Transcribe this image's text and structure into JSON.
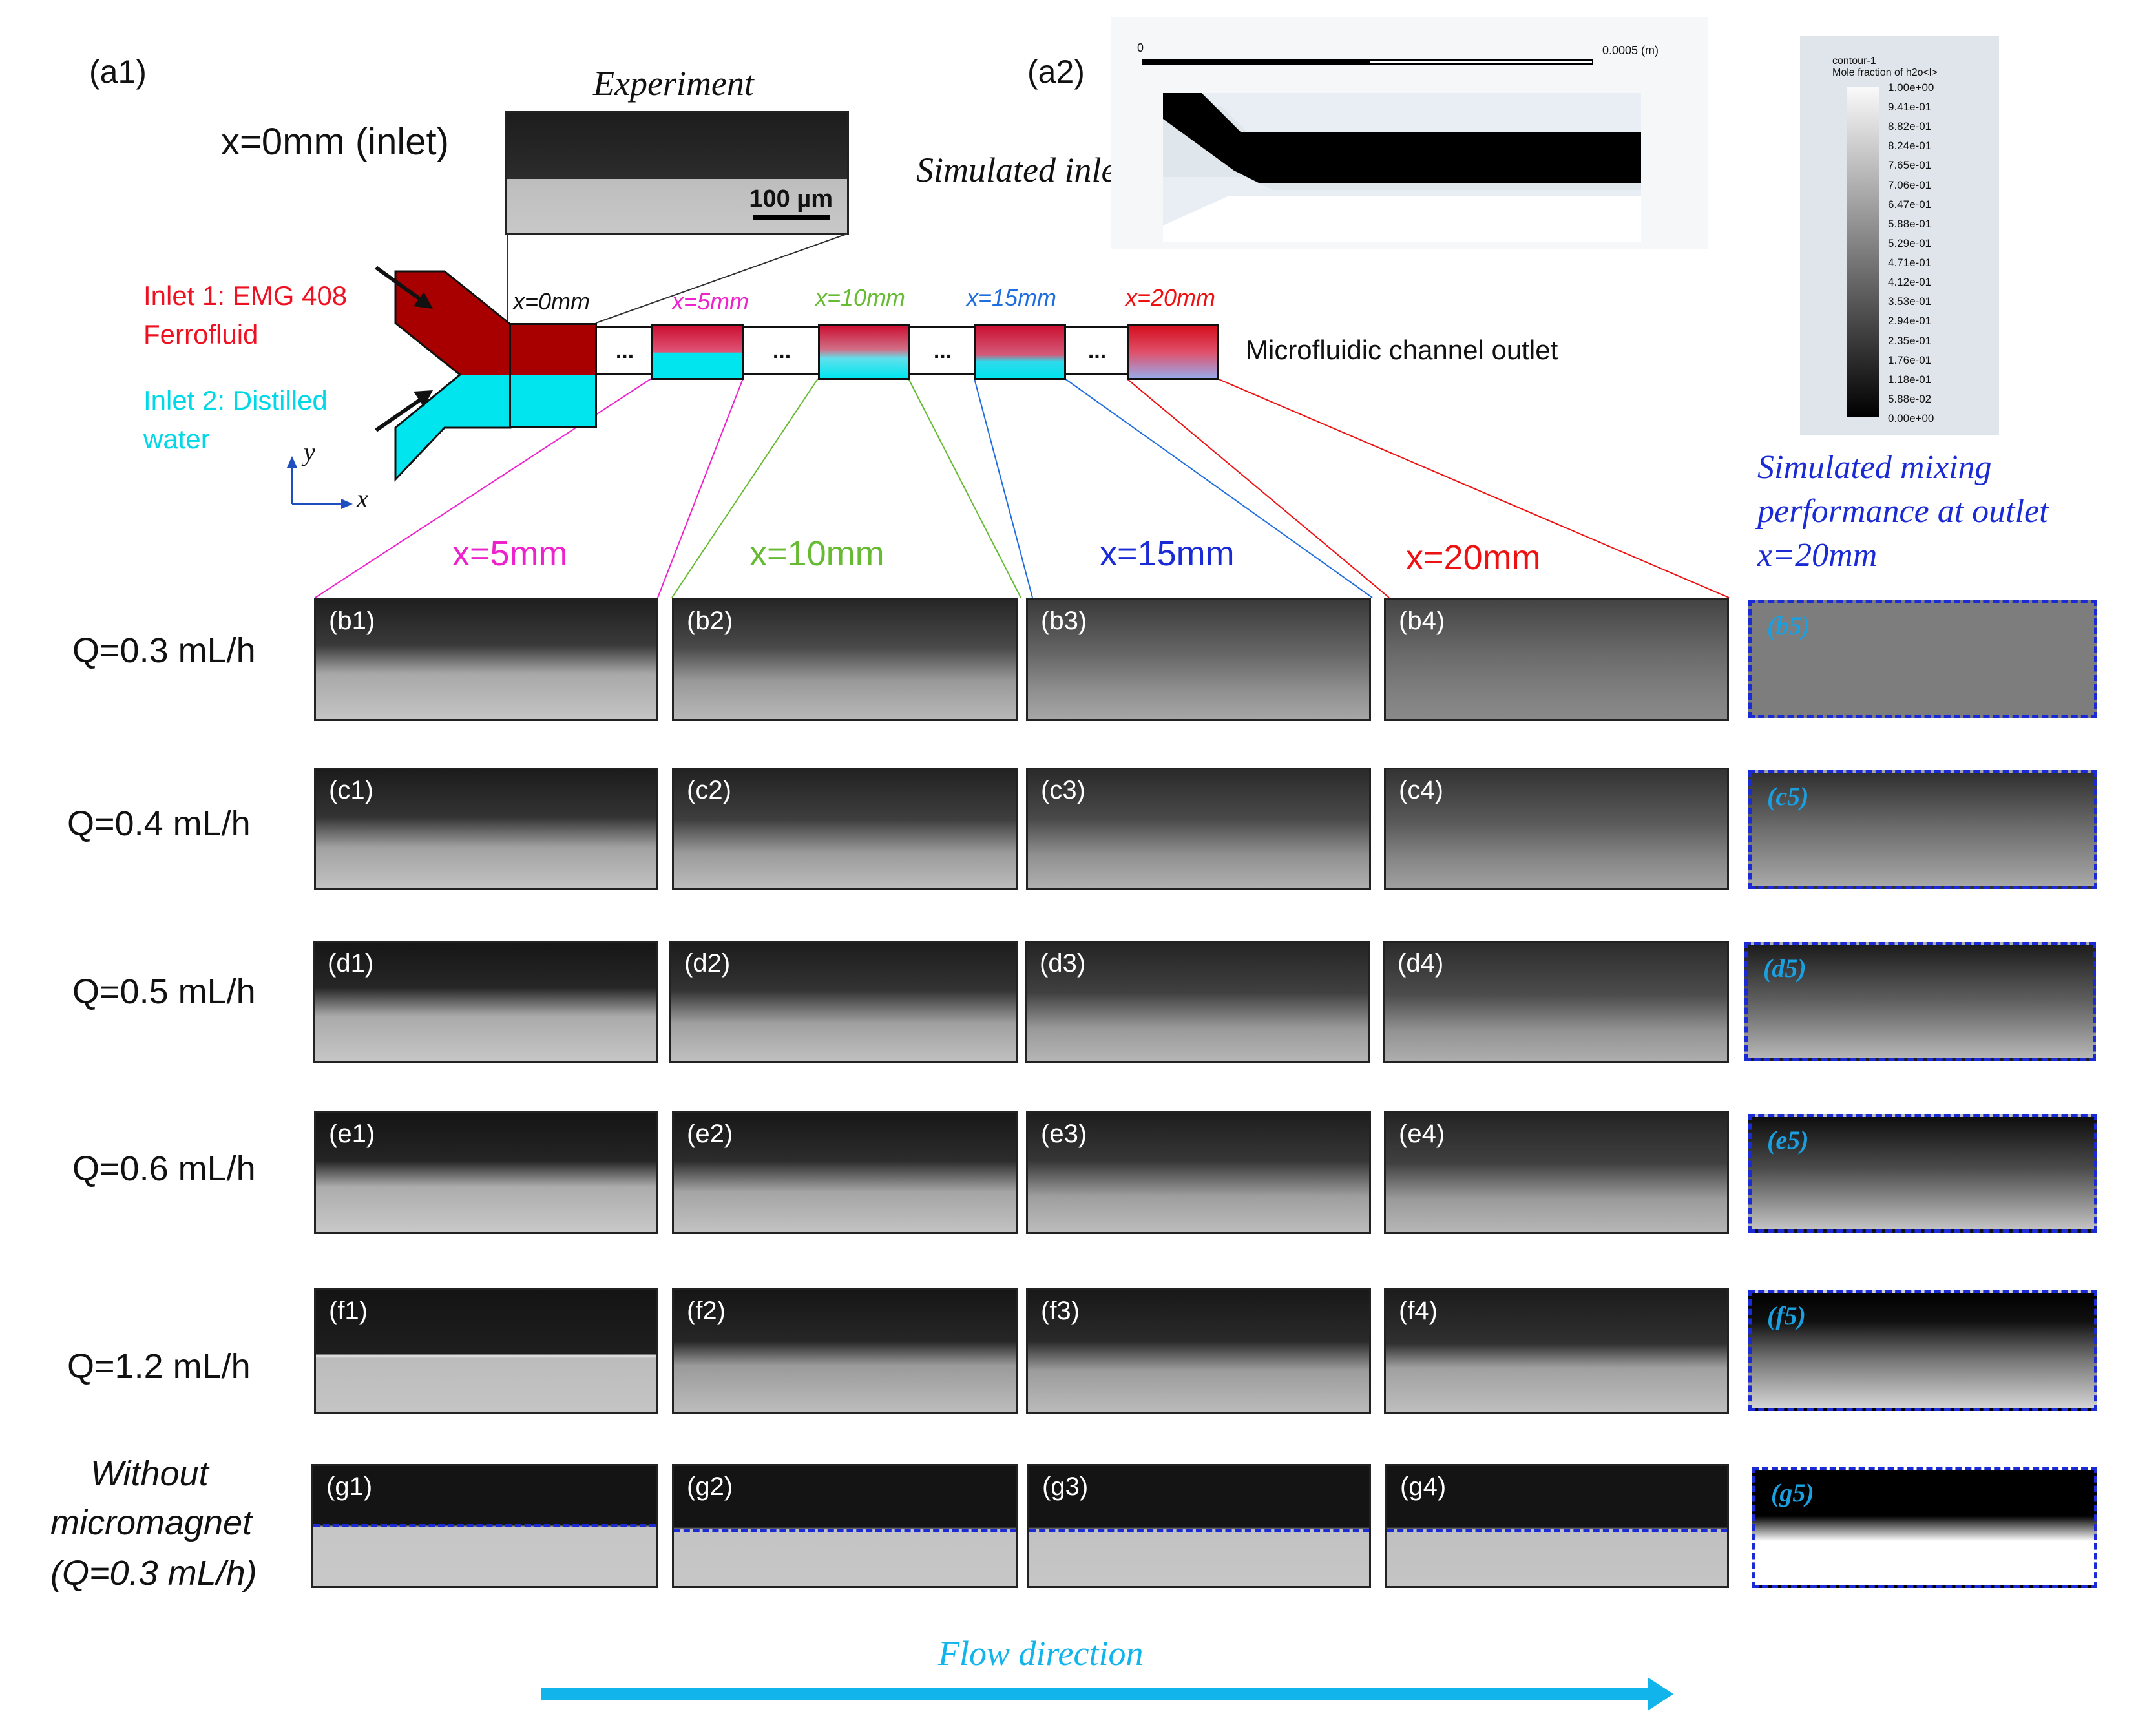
{
  "panel_a1": {
    "tag": "(a1)",
    "experiment_title": "Experiment",
    "inlet_position": "x=0mm (inlet)",
    "scale_bar": "100 µm",
    "inlet1": "Inlet 1: EMG 408 Ferrofluid",
    "inlet2": "Inlet 2: Distilled water",
    "axis_y": "y",
    "axis_x": "x",
    "channel_markers": [
      "x=0mm",
      "x=5mm",
      "x=10mm",
      "x=15mm",
      "x=20mm"
    ],
    "ellipsis": "...",
    "outlet": "Microfluidic channel outlet"
  },
  "panel_a2": {
    "tag": "(a2)",
    "caption": "Simulated inlet",
    "scale_start": "0",
    "scale_end": "0.0005 (m)"
  },
  "colorbar": {
    "title_line1": "contour-1",
    "title_line2": "Mole fraction of h2o<l>",
    "ticks": [
      "1.00e+00",
      "9.41e-01",
      "8.82e-01",
      "8.24e-01",
      "7.65e-01",
      "7.06e-01",
      "6.47e-01",
      "5.88e-01",
      "5.29e-01",
      "4.71e-01",
      "4.12e-01",
      "3.53e-01",
      "2.94e-01",
      "2.35e-01",
      "1.76e-01",
      "1.18e-01",
      "5.88e-02",
      "0.00e+00"
    ]
  },
  "sim_caption": "Simulated mixing performance at outlet x=20mm",
  "column_headers": [
    "x=5mm",
    "x=10mm",
    "x=15mm",
    "x=20mm"
  ],
  "colors": {
    "ferrofluid": "#a80000",
    "water": "#00e5ee",
    "x5": "#ee22cc",
    "x10": "#66bb33",
    "x15": "#1f6ee0",
    "x20": "#ee1111",
    "sim_border": "#1a2bd6",
    "sim_label": "#1aa0e0",
    "flow_arrow": "#12b4ec"
  },
  "rows": [
    {
      "label": "Q=0.3 mL/h",
      "panels": [
        "(b1)",
        "(b2)",
        "(b3)",
        "(b4)"
      ],
      "sim": "(b5)"
    },
    {
      "label": "Q=0.4 mL/h",
      "panels": [
        "(c1)",
        "(c2)",
        "(c3)",
        "(c4)"
      ],
      "sim": "(c5)"
    },
    {
      "label": "Q=0.5 mL/h",
      "panels": [
        "(d1)",
        "(d2)",
        "(d3)",
        "(d4)"
      ],
      "sim": "(d5)"
    },
    {
      "label": "Q=0.6 mL/h",
      "panels": [
        "(e1)",
        "(e2)",
        "(e3)",
        "(e4)"
      ],
      "sim": "(e5)"
    },
    {
      "label": "Q=1.2 mL/h",
      "panels": [
        "(f1)",
        "(f2)",
        "(f3)",
        "(f4)"
      ],
      "sim": "(f5)"
    },
    {
      "label_lines": [
        "Without",
        "micromagnet",
        "(Q=0.3 mL/h)"
      ],
      "panels": [
        "(g1)",
        "(g2)",
        "(g3)",
        "(g4)"
      ],
      "sim": "(g5)"
    }
  ],
  "flow_direction": "Flow direction"
}
